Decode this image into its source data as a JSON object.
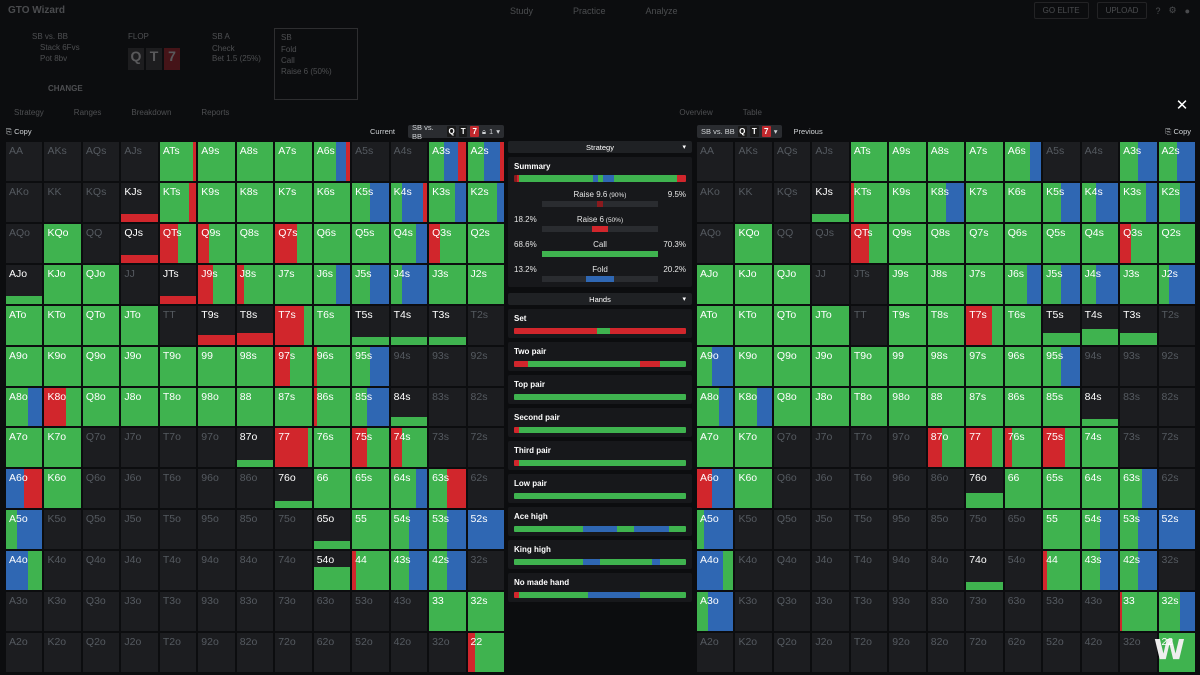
{
  "app": {
    "title": "GTO Wizard",
    "nav": [
      "Study",
      "Practice",
      "Analyze"
    ],
    "buttons": [
      "GO ELITE",
      "UPLOAD"
    ]
  },
  "settings": {
    "matchup": "SB vs. BB",
    "stack": "Stack 6Fvs",
    "pot": "Pot 8bv",
    "change": "CHANGE",
    "flop_label": "FLOP",
    "sb_label": "SB A",
    "bb_label": "SB",
    "actions_a": [
      "Check",
      "Bet 1.5 (25%)"
    ],
    "actions_b": [
      "Fold",
      "Call",
      "Raise 6 (50%)"
    ]
  },
  "subtabs": [
    "Strategy",
    "Ranges",
    "Breakdown",
    "Reports",
    "Overview",
    "Table"
  ],
  "left_bar": {
    "copy": "Copy",
    "current": "Current",
    "matchup": "SB vs. BB",
    "cards": [
      "Q",
      "T",
      "7"
    ],
    "count": "1"
  },
  "right_bar": {
    "copy": "Copy",
    "previous": "Previous",
    "matchup": "SB vs. BB",
    "cards": [
      "Q",
      "T",
      "7"
    ]
  },
  "colors": {
    "raise_big": "#8b1a1e",
    "raise": "#d1262c",
    "call": "#3fb34f",
    "fold": "#2f67b3",
    "empty": "#1c1d20"
  },
  "grid": {
    "left": [
      [
        "AA|off",
        "AKs|off",
        "AQs|off",
        "AJs|off",
        "ATs|g90r10",
        "A9s|g100",
        "A8s|g100",
        "A7s|g100",
        "A6s|g60b30r10",
        "A5s|off",
        "A4s|off",
        "A3s|g40b40r20",
        "A2s|g45b45r10"
      ],
      [
        "AKo|off",
        "KK|off",
        "KQs|off",
        "KJs|r15",
        "KTs|g80r20",
        "K9s|g100",
        "K8s|g100",
        "K7s|g100",
        "K6s|g100",
        "K5s|g50b50",
        "K4s|g30b60r10",
        "K3s|g70b30",
        "K2s|g80b20"
      ],
      [
        "AQo|off",
        "KQo|g100r0",
        "QQ|off",
        "QJs|r10",
        "QTs|r50g50",
        "Q9s|r30g70",
        "Q8s|g100",
        "Q7s|r60g40",
        "Q6s|g100",
        "Q5s|g100",
        "Q4s|g70b30",
        "Q3s|r30g70",
        "Q2s|g100"
      ],
      [
        "AJo|g20",
        "KJo|g100",
        "QJo|g100",
        "JJ|off",
        "JTs|r5",
        "J9s|r40g60",
        "J8s|r20g80",
        "J7s|g100",
        "J6s|g60b40",
        "J5s|g50b50",
        "J4s|g30b70",
        "J3s|g100",
        "J2s|g100"
      ],
      [
        "ATo|g100",
        "KTo|g100",
        "QTo|g100",
        "JTo|g100",
        "TT|off",
        "T9s|r25",
        "T8s|r30",
        "T7s|r80g20",
        "T6s|g100",
        "T5s|g20",
        "T4s|g15",
        "T3s|g10",
        "T2s|off"
      ],
      [
        "A9o|g100",
        "K9o|g100",
        "Q9o|g100",
        "J9o|g100",
        "T9o|g100",
        "99|g100",
        "98s|g100",
        "97s|r40g60",
        "96s|r10g90",
        "95s|g50b50",
        "94s|off",
        "93s|off",
        "92s|off"
      ],
      [
        "A8o|g60b40",
        "K8o|r60g40",
        "Q8o|g100",
        "J8o|g100",
        "T8o|g100",
        "98o|g100",
        "88|g100",
        "87s|g100",
        "86s|r10g90",
        "85s|g40b60",
        "84s|g25",
        "83s|off",
        "82s|off"
      ],
      [
        "A7o|g100",
        "K7o|g100",
        "Q7o|off",
        "J7o|off",
        "T7o|off",
        "97o|off",
        "87o|g20",
        "77|r90g10",
        "76s|g100",
        "75s|r40g60",
        "74s|r30g70",
        "73s|off",
        "72s|off"
      ],
      [
        "A6o|b50r50",
        "K6o|g100",
        "Q6o|off",
        "J6o|off",
        "T6o|off",
        "96o|off",
        "86o|off",
        "76o|g20",
        "66|g100",
        "65s|g100",
        "64s|g70b30",
        "63s|g50r50",
        "62s|off"
      ],
      [
        "A5o|g30b70",
        "K5o|off",
        "Q5o|off",
        "J5o|off",
        "T5o|off",
        "95o|off",
        "85o|off",
        "75o|off",
        "65o|g5",
        "55|g100",
        "54s|g50b50",
        "53s|g50b50",
        "52s|b100"
      ],
      [
        "A4o|b60g40",
        "K4o|off",
        "Q4o|off",
        "J4o|off",
        "T4o|off",
        "94o|off",
        "84o|off",
        "74o|off",
        "54o|g60",
        "44|r10g90",
        "43s|g50b50",
        "42s|g50b50",
        "32s|off"
      ],
      [
        "A3o|off",
        "K3o|off",
        "Q3o|off",
        "J3o|off",
        "T3o|off",
        "93o|off",
        "83o|off",
        "73o|off",
        "63o|off",
        "53o|off",
        "43o|off",
        "33|g100",
        "32s|g100"
      ],
      [
        "A2o|off",
        "K2o|off",
        "Q2o|off",
        "J2o|off",
        "T2o|off",
        "92o|off",
        "82o|off",
        "72o|off",
        "62o|off",
        "52o|off",
        "42o|off",
        "32o|off",
        "22|r20g80"
      ]
    ],
    "right": [
      [
        "AA|off",
        "AKs|off",
        "AQs|off",
        "AJs|off",
        "ATs|g100",
        "A9s|g100",
        "A8s|g100",
        "A7s|g100",
        "A6s|g70b30",
        "A5s|off",
        "A4s|off",
        "A3s|g50b50",
        "A2s|g50b50"
      ],
      [
        "AKo|off",
        "KK|off",
        "KQs|off",
        "KJs|g10",
        "KTs|r10g90",
        "K9s|g100",
        "K8s|g50b50",
        "K7s|g100",
        "K6s|g100",
        "K5s|g50b50",
        "K4s|g40b60",
        "K3s|g70b30",
        "K2s|g60b40"
      ],
      [
        "AQo|off",
        "KQo|g100",
        "QQ|off",
        "QJs|off",
        "QTs|r50g50",
        "Q9s|g100",
        "Q8s|g100",
        "Q7s|g100",
        "Q6s|g100",
        "Q5s|g100",
        "Q4s|g100",
        "Q3s|r30g70",
        "Q2s|g100"
      ],
      [
        "AJo|g100",
        "KJo|g100",
        "QJo|g100",
        "JJ|off",
        "JTs|off",
        "J9s|g100",
        "J8s|g100",
        "J7s|g100",
        "J6s|g60b40",
        "J5s|g50b50",
        "J4s|g40b60",
        "J3s|g100",
        "J2s|g30b70"
      ],
      [
        "ATo|g100",
        "KTo|g100",
        "QTo|g100",
        "JTo|g100",
        "TT|off",
        "T9s|g100",
        "T8s|g100",
        "T7s|r70g30",
        "T6s|g100",
        "T5s|g30",
        "T4s|g40",
        "T3s|g30",
        "T2s|off"
      ],
      [
        "A9o|g40b60",
        "K9o|g100",
        "Q9o|g100",
        "J9o|g100",
        "T9o|g100",
        "99|g100",
        "98s|g100",
        "97s|g100",
        "96s|g100",
        "95s|g50b50",
        "94s|off",
        "93s|off",
        "92s|off"
      ],
      [
        "A8o|g60b40",
        "K8o|g60b40",
        "Q8o|g100",
        "J8o|g100",
        "T8o|g100",
        "98o|g100",
        "88|g100",
        "87s|g100",
        "86s|g100",
        "85s|g100",
        "84s|g20",
        "83s|off",
        "82s|off"
      ],
      [
        "A7o|g100",
        "K7o|g100",
        "Q7o|off",
        "J7o|off",
        "T7o|off",
        "97o|off",
        "87o|r40g60",
        "77|r70g30",
        "76s|r20g80",
        "75s|r60g40",
        "74s|g100",
        "73s|off",
        "72s|off"
      ],
      [
        "A6o|r40b60",
        "K6o|g100",
        "Q6o|off",
        "J6o|off",
        "T6o|off",
        "96o|off",
        "86o|off",
        "76o|g40",
        "66|g100",
        "65s|g100",
        "64s|g100",
        "63s|g60b40",
        "62s|off"
      ],
      [
        "A5o|g20b80",
        "K5o|off",
        "Q5o|off",
        "J5o|off",
        "T5o|off",
        "95o|off",
        "85o|off",
        "75o|off",
        "65o|off",
        "55|g100",
        "54s|g50b50",
        "53s|g50b50",
        "52s|b100"
      ],
      [
        "A4o|b70g30",
        "K4o|off",
        "Q4o|off",
        "J4o|off",
        "T4o|off",
        "94o|off",
        "84o|off",
        "74o|g20",
        "54o|off",
        "44|r10g90",
        "43s|g50b50",
        "42s|g50b50",
        "32s|off"
      ],
      [
        "A3o|g30b70",
        "K3o|off",
        "Q3o|off",
        "J3o|off",
        "T3o|off",
        "93o|off",
        "83o|off",
        "73o|off",
        "63o|off",
        "53o|off",
        "43o|off",
        "33|r5g95",
        "32s|g60b40"
      ],
      [
        "A2o|off",
        "K2o|off",
        "Q2o|off",
        "J2o|off",
        "T2o|off",
        "92o|off",
        "82o|off",
        "72o|off",
        "62o|off",
        "52o|off",
        "42o|off",
        "32o|off",
        "22|g100"
      ]
    ]
  },
  "middle": {
    "strategy_label": "Strategy",
    "summary_title": "Summary",
    "summary_bar": [
      {
        "c": "raise_big",
        "w": 1.5
      },
      {
        "c": "raise",
        "w": 1.5
      },
      {
        "c": "call",
        "w": 43
      },
      {
        "c": "fold",
        "w": 3
      },
      {
        "c": "call",
        "w": 3
      },
      {
        "c": "fold",
        "w": 6
      },
      {
        "c": "call",
        "w": 37
      },
      {
        "c": "raise",
        "w": 5
      }
    ],
    "actions": [
      {
        "left": "",
        "name": "Raise",
        "size": "9.6",
        "pct": "(90%)",
        "right": "9.5%",
        "color": "raise_big",
        "value": 0.05
      },
      {
        "left": "18.2%",
        "name": "Raise",
        "size": "6",
        "pct": "(50%)",
        "right": "",
        "color": "raise",
        "value": 0.13
      },
      {
        "left": "68.6%",
        "name": "Call",
        "size": "",
        "pct": "",
        "right": "70.3%",
        "color": "call",
        "value": 1.0
      },
      {
        "left": "13.2%",
        "name": "Fold",
        "size": "",
        "pct": "",
        "right": "20.2%",
        "color": "fold",
        "value": 0.24
      }
    ],
    "hands_label": "Hands",
    "hands": [
      {
        "name": "Set",
        "bar": [
          {
            "c": "raise",
            "w": 48
          },
          {
            "c": "call",
            "w": 8
          },
          {
            "c": "raise",
            "w": 44
          }
        ]
      },
      {
        "name": "Two pair",
        "bar": [
          {
            "c": "raise",
            "w": 8
          },
          {
            "c": "call",
            "w": 65
          },
          {
            "c": "raise",
            "w": 12
          },
          {
            "c": "call",
            "w": 15
          }
        ]
      },
      {
        "name": "Top pair",
        "bar": [
          {
            "c": "call",
            "w": 100
          }
        ]
      },
      {
        "name": "Second pair",
        "bar": [
          {
            "c": "raise",
            "w": 3
          },
          {
            "c": "call",
            "w": 97
          }
        ]
      },
      {
        "name": "Third pair",
        "bar": [
          {
            "c": "raise",
            "w": 3
          },
          {
            "c": "call",
            "w": 97
          }
        ]
      },
      {
        "name": "Low pair",
        "bar": [
          {
            "c": "call",
            "w": 100
          }
        ]
      },
      {
        "name": "Ace high",
        "bar": [
          {
            "c": "call",
            "w": 40
          },
          {
            "c": "fold",
            "w": 20
          },
          {
            "c": "call",
            "w": 10
          },
          {
            "c": "fold",
            "w": 20
          },
          {
            "c": "call",
            "w": 10
          }
        ]
      },
      {
        "name": "King high",
        "bar": [
          {
            "c": "call",
            "w": 40
          },
          {
            "c": "fold",
            "w": 10
          },
          {
            "c": "call",
            "w": 30
          },
          {
            "c": "fold",
            "w": 5
          },
          {
            "c": "call",
            "w": 15
          }
        ]
      },
      {
        "name": "No made hand",
        "bar": [
          {
            "c": "raise",
            "w": 3
          },
          {
            "c": "call",
            "w": 40
          },
          {
            "c": "fold",
            "w": 30
          },
          {
            "c": "call",
            "w": 27
          }
        ]
      }
    ]
  }
}
